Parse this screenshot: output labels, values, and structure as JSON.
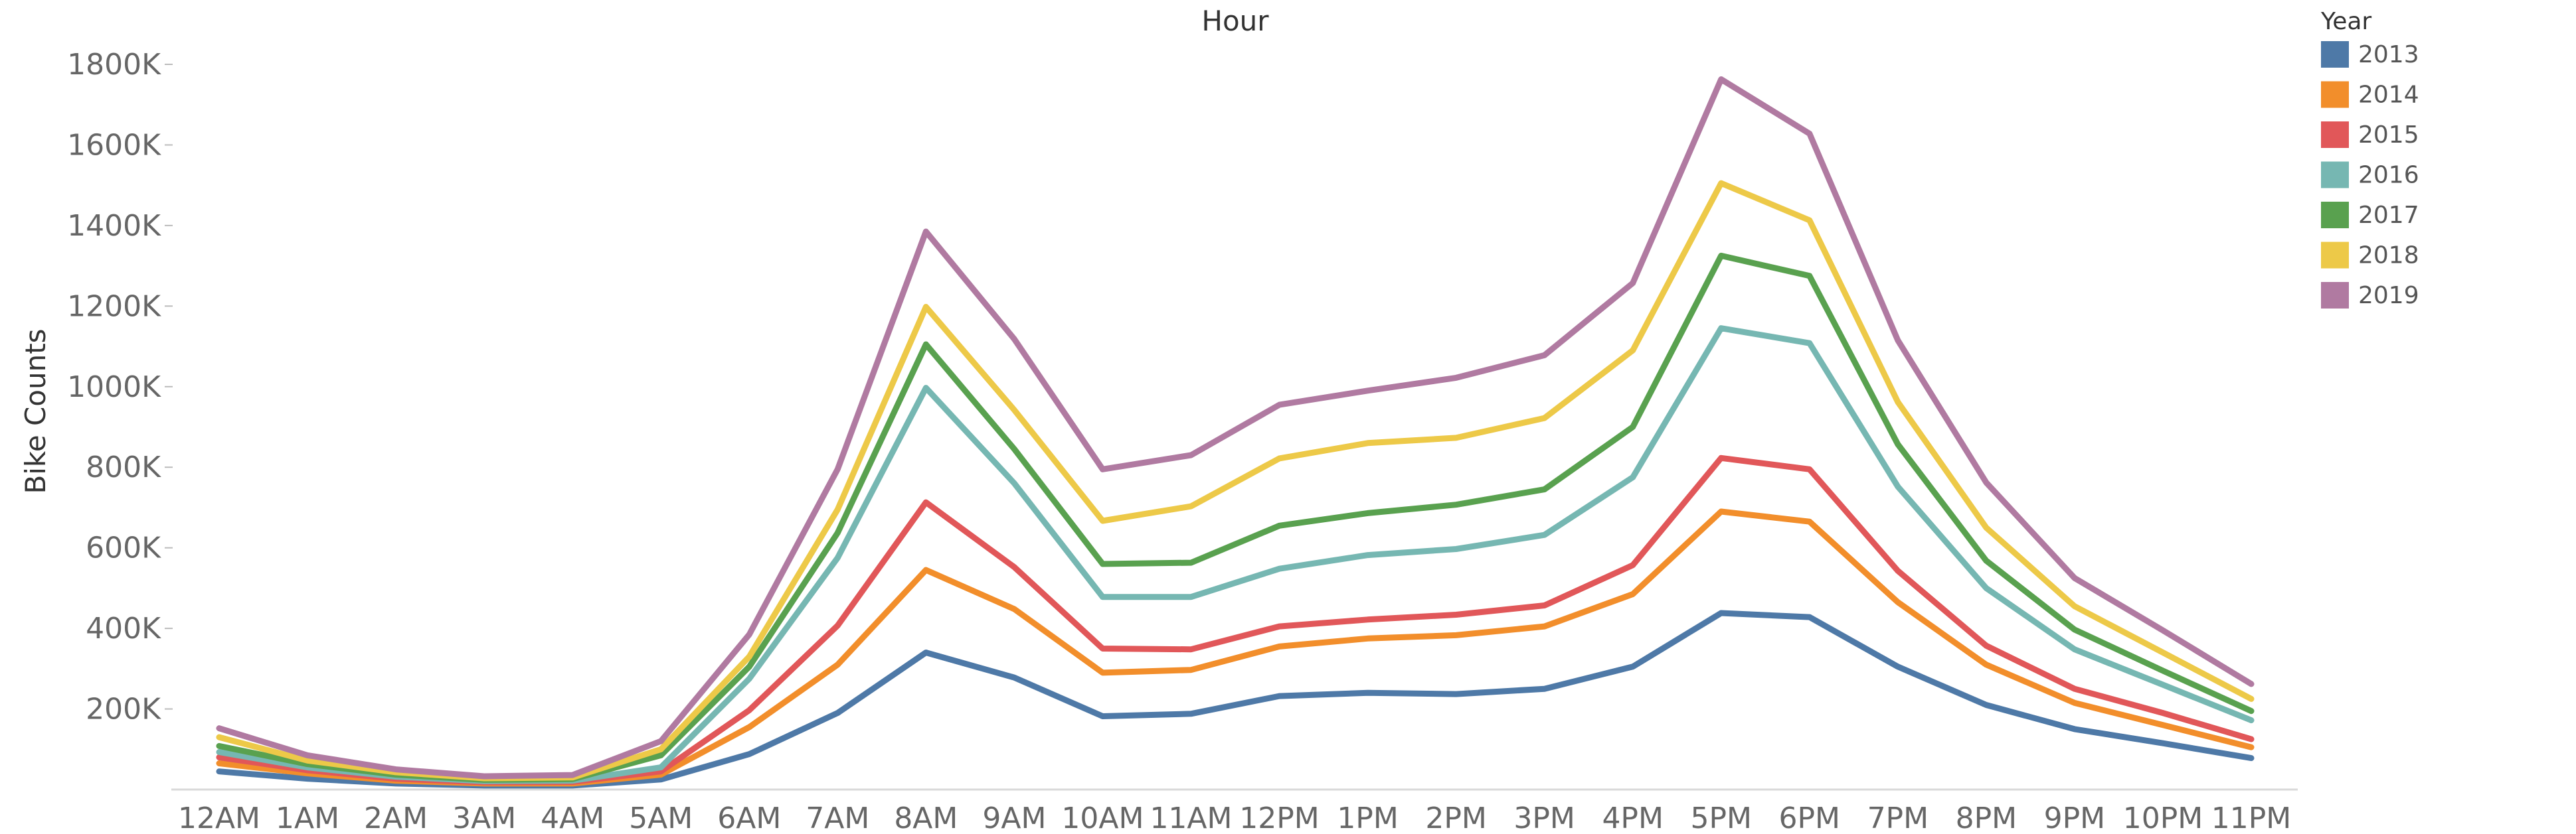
{
  "chart_data": {
    "type": "line",
    "title": "Hour",
    "xlabel": "",
    "ylabel": "Bike Counts",
    "categories": [
      "12AM",
      "1AM",
      "2AM",
      "3AM",
      "4AM",
      "5AM",
      "6AM",
      "7AM",
      "8AM",
      "9AM",
      "10AM",
      "11AM",
      "12PM",
      "1PM",
      "2PM",
      "3PM",
      "4PM",
      "5PM",
      "6PM",
      "7PM",
      "8PM",
      "9PM",
      "10PM",
      "11PM"
    ],
    "yticks": [
      200000,
      400000,
      600000,
      800000,
      1000000,
      1200000,
      1400000,
      1600000,
      1800000
    ],
    "ytick_labels": [
      "200K",
      "400K",
      "600K",
      "800K",
      "1000K",
      "1200K",
      "1400K",
      "1600K",
      "1800K"
    ],
    "ylim": [
      0,
      1850000
    ],
    "grid": false,
    "legend": {
      "title": "Year",
      "position": "top-right"
    },
    "series": [
      {
        "name": "2013",
        "color": "#4E79A7",
        "values": [
          45000,
          27000,
          15000,
          10000,
          10000,
          25000,
          88000,
          190000,
          340000,
          278000,
          182000,
          188000,
          232000,
          240000,
          237000,
          250000,
          305000,
          438000,
          428000,
          305000,
          210000,
          150000,
          115000,
          78000
        ]
      },
      {
        "name": "2014",
        "color": "#F28E2B",
        "values": [
          65000,
          40000,
          22000,
          15000,
          15000,
          37000,
          155000,
          310000,
          545000,
          448000,
          290000,
          297000,
          355000,
          375000,
          383000,
          405000,
          485000,
          690000,
          665000,
          465000,
          310000,
          215000,
          160000,
          105000
        ]
      },
      {
        "name": "2015",
        "color": "#E15759",
        "values": [
          80000,
          48000,
          27000,
          18000,
          19000,
          45000,
          197000,
          407000,
          713000,
          552000,
          350000,
          348000,
          405000,
          422000,
          434000,
          457000,
          557000,
          823000,
          795000,
          543000,
          357000,
          250000,
          190000,
          125000
        ]
      },
      {
        "name": "2016",
        "color": "#76B7B2",
        "values": [
          93000,
          55000,
          32000,
          21000,
          22000,
          55000,
          275000,
          575000,
          997000,
          760000,
          478000,
          478000,
          548000,
          582000,
          597000,
          632000,
          775000,
          1145000,
          1108000,
          752000,
          500000,
          348000,
          260000,
          172000
        ]
      },
      {
        "name": "2017",
        "color": "#59A14F",
        "values": [
          108000,
          63000,
          37000,
          24000,
          26000,
          85000,
          305000,
          637000,
          1105000,
          845000,
          560000,
          563000,
          655000,
          686000,
          707000,
          745000,
          900000,
          1325000,
          1275000,
          857000,
          568000,
          397000,
          295000,
          195000
        ]
      },
      {
        "name": "2018",
        "color": "#EDC948",
        "values": [
          130000,
          72000,
          43000,
          28000,
          30000,
          100000,
          330000,
          695000,
          1198000,
          942000,
          667000,
          703000,
          822000,
          860000,
          873000,
          922000,
          1090000,
          1505000,
          1413000,
          962000,
          650000,
          455000,
          340000,
          225000
        ]
      },
      {
        "name": "2019",
        "color": "#B07AA1",
        "values": [
          152000,
          85000,
          50000,
          33000,
          36000,
          120000,
          385000,
          795000,
          1385000,
          1118000,
          795000,
          830000,
          955000,
          990000,
          1022000,
          1078000,
          1257000,
          1763000,
          1628000,
          1115000,
          762000,
          525000,
          395000,
          262000
        ]
      }
    ]
  }
}
